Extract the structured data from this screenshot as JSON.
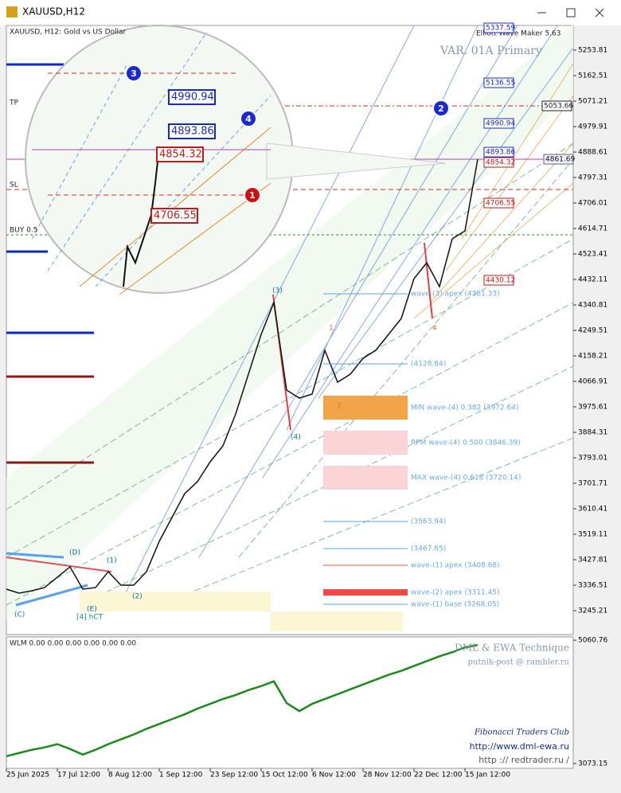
{
  "window": {
    "title": "XAUUSD,H12"
  },
  "chart_data": [
    {
      "type": "line",
      "title": "XAUUSD, H12:  Gold vs US Dollar",
      "color": "#111111",
      "categories": [
        "25 Jun 2025",
        null,
        null,
        null,
        "17 Jul 12:00",
        null,
        null,
        null,
        "8 Aug 12:00",
        null,
        null,
        null,
        "1 Sep 12:00",
        null,
        null,
        null,
        "23 Sep 12:00",
        null,
        null,
        null,
        "15 Oct 12:00",
        null,
        null,
        null,
        "6 Nov 12:00",
        null,
        null,
        null,
        "28 Nov 12:00",
        null,
        null,
        null,
        "22 Dec 12:00",
        null,
        null,
        null,
        "15 Jan 12:00",
        null
      ],
      "values": [
        3322.3,
        3308.1,
        3316.6,
        3328.0,
        3365.1,
        3402.2,
        3322.3,
        3328.0,
        3385.1,
        3336.6,
        3336.6,
        3385.1,
        3493.5,
        3579.1,
        3664.7,
        3707.5,
        3778.8,
        3835.8,
        3950.0,
        4092.6,
        4235.3,
        4349.4,
        4035.6,
        4007.0,
        4021.3,
        4178.2,
        4064.1,
        4092.6,
        4149.7,
        4178.2,
        4235.3,
        4292.3,
        4435.0,
        4492.0,
        4406.5,
        4577.6,
        4606.2,
        4862.9
      ],
      "ylim": [
        3159.6,
        5342.3
      ],
      "yticks": [
        5253.81,
        5162.51,
        5071.21,
        4979.91,
        4888.61,
        4797.31,
        4706.01,
        4614.71,
        4523.41,
        4432.11,
        4340.81,
        4249.51,
        4158.21,
        4066.91,
        3975.61,
        3884.31,
        3793.01,
        3701.71,
        3610.41,
        3519.11,
        3427.81,
        3336.51,
        3245.21
      ],
      "current_price": "4861.69",
      "indicator": "Elliott Wave Maker 5.63",
      "variant": "VAR. 01A Primary",
      "trade_labels": [
        "TP",
        "SL",
        "BUY 0.5"
      ],
      "price_labels": [
        "5337.59",
        "5136.55",
        "5053.66",
        "4990.94",
        "4893.86",
        "4854.32",
        "4706.55",
        "4430.12"
      ],
      "levels": [
        "wave-(3) apex (4381.33)",
        "(4128.84)",
        "MIN wave-(4) 0.382 (3972.64)",
        "RPM wave-(4) 0.500 (3846.39)",
        "MAX wave-(4) 0.618 (3720.14)",
        "(3563.94)",
        "(3467.65)",
        "wave-(1) apex (3408.68)",
        "wave-(2) apex (3311.45)",
        "wave-(1) base (3268.05)"
      ],
      "wave_labels": [
        "(3)",
        "(4)",
        "(2)",
        "(1)",
        "(D)",
        "(E)",
        "(C)",
        "[4] hCT",
        "1",
        "2",
        "4"
      ],
      "markers": [
        "1",
        "2",
        "3",
        "4"
      ]
    },
    {
      "type": "line",
      "title": "WLM 0.00 0.00 0.00 0.00 0.00 0.00",
      "color": "#1a8a1a",
      "values": [
        3190.1,
        3242.0,
        3294.0,
        3332.9,
        3384.9,
        3306.9,
        3216.0,
        3294.0,
        3384.9,
        3462.9,
        3540.8,
        3631.7,
        3709.7,
        3787.6,
        3865.5,
        3956.5,
        4034.4,
        4112.4,
        4177.3,
        4255.2,
        4320.2,
        4398.1,
        4047.4,
        3917.5,
        4034.4,
        4112.4,
        4190.3,
        4268.2,
        4346.2,
        4424.1,
        4502.0,
        4567.0,
        4644.9,
        4722.9,
        4800.8,
        4865.8,
        4943.7,
        4982.7
      ],
      "ylim": [
        2995.2,
        5112.7
      ],
      "yticks": [
        5060.76,
        3073.15
      ],
      "notes": [
        "DML & EWA Technique",
        "putnik-post @ rambler.ru",
        "Fibonacci   Traders   Club",
        "http://www.dml-ewa.ru",
        "http :// redtrader.ru /"
      ]
    }
  ]
}
